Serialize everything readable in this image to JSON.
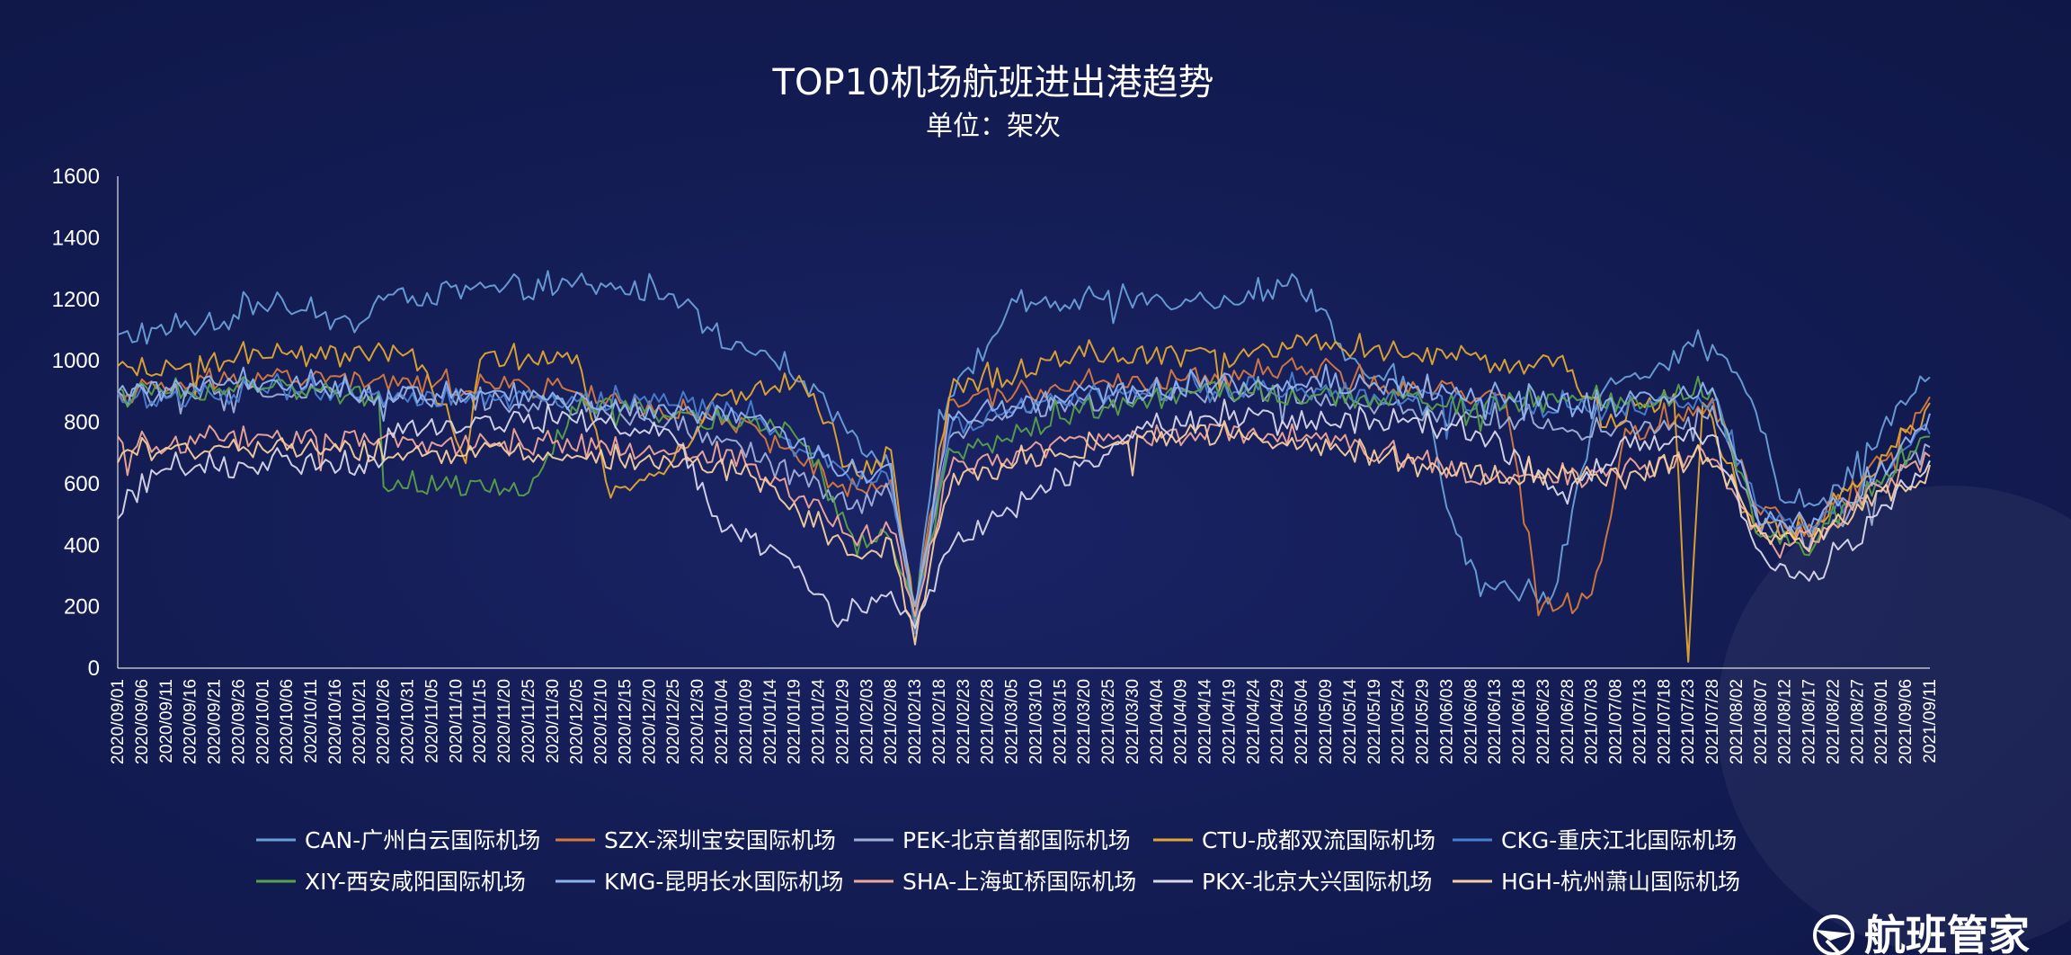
{
  "brand": {
    "name": "航班管家",
    "logo_icon": "globe-plane-icon"
  },
  "chart_data": {
    "type": "line",
    "title": "TOP10机场航班进出港趋势",
    "subtitle": "单位：架次",
    "ylim": [
      0,
      1600
    ],
    "yticks": [
      0,
      200,
      400,
      600,
      800,
      1000,
      1200,
      1400,
      1600
    ],
    "x_start": "2020/09/01",
    "x_end": "2021/09/11",
    "xticks": [
      "2020/09/01",
      "2020/09/06",
      "2020/09/11",
      "2020/09/16",
      "2020/09/21",
      "2020/09/26",
      "2020/10/01",
      "2020/10/06",
      "2020/10/11",
      "2020/10/16",
      "2020/10/21",
      "2020/10/26",
      "2020/10/31",
      "2020/11/05",
      "2020/11/10",
      "2020/11/15",
      "2020/11/20",
      "2020/11/25",
      "2020/11/30",
      "2020/12/05",
      "2020/12/10",
      "2020/12/15",
      "2020/12/20",
      "2020/12/25",
      "2020/12/30",
      "2021/01/04",
      "2021/01/09",
      "2021/01/14",
      "2021/01/19",
      "2021/01/24",
      "2021/01/29",
      "2021/02/03",
      "2021/02/08",
      "2021/02/13",
      "2021/02/18",
      "2021/02/23",
      "2021/02/28",
      "2021/03/05",
      "2021/03/10",
      "2021/03/15",
      "2021/03/20",
      "2021/03/25",
      "2021/03/30",
      "2021/04/04",
      "2021/04/09",
      "2021/04/14",
      "2021/04/19",
      "2021/04/24",
      "2021/04/29",
      "2021/05/04",
      "2021/05/09",
      "2021/05/14",
      "2021/05/19",
      "2021/05/24",
      "2021/05/29",
      "2021/06/03",
      "2021/06/08",
      "2021/06/13",
      "2021/06/18",
      "2021/06/23",
      "2021/06/28",
      "2021/07/03",
      "2021/07/08",
      "2021/07/13",
      "2021/07/18",
      "2021/07/23",
      "2021/07/28",
      "2021/08/02",
      "2021/08/07",
      "2021/08/12",
      "2021/08/17",
      "2021/08/22",
      "2021/08/27",
      "2021/09/01",
      "2021/09/06",
      "2021/09/11"
    ],
    "grid": false,
    "legend_position": "bottom",
    "series": [
      {
        "name": "CAN-广州白云国际机场",
        "color": "#6a9fd8",
        "anchors": [
          [
            "2020/09/01",
            1070
          ],
          [
            "2020/09/20",
            1120
          ],
          [
            "2020/10/01",
            1190
          ],
          [
            "2020/10/20",
            1110
          ],
          [
            "2020/10/26",
            1200
          ],
          [
            "2020/11/20",
            1230
          ],
          [
            "2020/12/05",
            1240
          ],
          [
            "2020/12/25",
            1220
          ],
          [
            "2021/01/04",
            1050
          ],
          [
            "2021/01/20",
            960
          ],
          [
            "2021/02/01",
            720
          ],
          [
            "2021/02/08",
            650
          ],
          [
            "2021/02/13",
            160
          ],
          [
            "2021/02/18",
            820
          ],
          [
            "2021/03/05",
            1170
          ],
          [
            "2021/03/30",
            1200
          ],
          [
            "2021/04/19",
            1200
          ],
          [
            "2021/05/04",
            1250
          ],
          [
            "2021/05/14",
            990
          ],
          [
            "2021/05/29",
            900
          ],
          [
            "2021/06/05",
            420
          ],
          [
            "2021/06/10",
            260
          ],
          [
            "2021/06/25",
            240
          ],
          [
            "2021/07/05",
            900
          ],
          [
            "2021/07/25",
            1040
          ],
          [
            "2021/08/02",
            980
          ],
          [
            "2021/08/12",
            540
          ],
          [
            "2021/08/22",
            560
          ],
          [
            "2021/09/01",
            780
          ],
          [
            "2021/09/11",
            950
          ]
        ]
      },
      {
        "name": "SZX-深圳宝安国际机场",
        "color": "#d77a3d",
        "anchors": [
          [
            "2020/09/01",
            890
          ],
          [
            "2020/10/01",
            950
          ],
          [
            "2020/11/01",
            920
          ],
          [
            "2020/12/01",
            910
          ],
          [
            "2020/12/25",
            820
          ],
          [
            "2021/01/09",
            780
          ],
          [
            "2021/02/01",
            560
          ],
          [
            "2021/02/08",
            600
          ],
          [
            "2021/02/13",
            170
          ],
          [
            "2021/02/20",
            850
          ],
          [
            "2021/03/10",
            900
          ],
          [
            "2021/04/10",
            940
          ],
          [
            "2021/05/04",
            980
          ],
          [
            "2021/05/20",
            920
          ],
          [
            "2021/06/15",
            880
          ],
          [
            "2021/06/22",
            200
          ],
          [
            "2021/07/03",
            220
          ],
          [
            "2021/07/10",
            760
          ],
          [
            "2021/07/28",
            860
          ],
          [
            "2021/08/07",
            520
          ],
          [
            "2021/08/15",
            440
          ],
          [
            "2021/08/25",
            560
          ],
          [
            "2021/09/11",
            860
          ]
        ]
      },
      {
        "name": "PEK-北京首都国际机场",
        "color": "#9fb0d8",
        "anchors": [
          [
            "2020/09/01",
            880
          ],
          [
            "2020/10/01",
            900
          ],
          [
            "2020/11/01",
            880
          ],
          [
            "2020/12/01",
            860
          ],
          [
            "2020/12/25",
            800
          ],
          [
            "2021/01/09",
            700
          ],
          [
            "2021/02/01",
            520
          ],
          [
            "2021/02/08",
            580
          ],
          [
            "2021/02/13",
            150
          ],
          [
            "2021/02/20",
            760
          ],
          [
            "2021/03/15",
            860
          ],
          [
            "2021/04/15",
            900
          ],
          [
            "2021/05/10",
            880
          ],
          [
            "2021/06/01",
            820
          ],
          [
            "2021/06/20",
            800
          ],
          [
            "2021/07/05",
            760
          ],
          [
            "2021/07/28",
            820
          ],
          [
            "2021/08/07",
            460
          ],
          [
            "2021/08/17",
            420
          ],
          [
            "2021/08/27",
            520
          ],
          [
            "2021/09/11",
            720
          ]
        ]
      },
      {
        "name": "CTU-成都双流国际机场",
        "color": "#e2a632",
        "anchors": [
          [
            "2020/09/01",
            960
          ],
          [
            "2020/10/01",
            1010
          ],
          [
            "2020/11/01",
            1020
          ],
          [
            "2020/11/12",
            690
          ],
          [
            "2020/11/15",
            1010
          ],
          [
            "2020/12/05",
            990
          ],
          [
            "2020/12/12",
            580
          ],
          [
            "2020/12/22",
            620
          ],
          [
            "2021/01/04",
            880
          ],
          [
            "2021/01/20",
            930
          ],
          [
            "2021/02/01",
            640
          ],
          [
            "2021/02/08",
            700
          ],
          [
            "2021/02/13",
            160
          ],
          [
            "2021/02/20",
            900
          ],
          [
            "2021/03/20",
            1020
          ],
          [
            "2021/04/20",
            1010
          ],
          [
            "2021/05/04",
            1060
          ],
          [
            "2021/05/29",
            1010
          ],
          [
            "2021/06/28",
            980
          ],
          [
            "2021/07/05",
            800
          ],
          [
            "2021/07/20",
            880
          ],
          [
            "2021/07/23",
            20
          ],
          [
            "2021/07/26",
            860
          ],
          [
            "2021/08/05",
            460
          ],
          [
            "2021/08/17",
            440
          ],
          [
            "2021/08/27",
            600
          ],
          [
            "2021/09/11",
            830
          ]
        ]
      },
      {
        "name": "CKG-重庆江北国际机场",
        "color": "#4a7fd0",
        "anchors": [
          [
            "2020/09/01",
            870
          ],
          [
            "2020/10/01",
            900
          ],
          [
            "2020/11/01",
            880
          ],
          [
            "2020/12/01",
            870
          ],
          [
            "2020/12/25",
            860
          ],
          [
            "2021/01/09",
            820
          ],
          [
            "2021/02/01",
            600
          ],
          [
            "2021/02/08",
            620
          ],
          [
            "2021/02/13",
            140
          ],
          [
            "2021/02/20",
            780
          ],
          [
            "2021/03/15",
            880
          ],
          [
            "2021/04/15",
            920
          ],
          [
            "2021/05/10",
            900
          ],
          [
            "2021/06/10",
            860
          ],
          [
            "2021/07/05",
            840
          ],
          [
            "2021/07/28",
            880
          ],
          [
            "2021/08/07",
            500
          ],
          [
            "2021/08/17",
            460
          ],
          [
            "2021/08/27",
            560
          ],
          [
            "2021/09/11",
            780
          ]
        ]
      },
      {
        "name": "XIY-西安咸阳国际机场",
        "color": "#5aa04a",
        "anchors": [
          [
            "2020/09/01",
            880
          ],
          [
            "2020/10/01",
            920
          ],
          [
            "2020/10/25",
            880
          ],
          [
            "2020/10/26",
            600
          ],
          [
            "2020/11/25",
            590
          ],
          [
            "2020/12/05",
            860
          ],
          [
            "2020/12/25",
            820
          ],
          [
            "2021/01/09",
            800
          ],
          [
            "2021/01/20",
            760
          ],
          [
            "2021/02/01",
            400
          ],
          [
            "2021/02/08",
            440
          ],
          [
            "2021/02/13",
            180
          ],
          [
            "2021/02/20",
            680
          ],
          [
            "2021/03/15",
            820
          ],
          [
            "2021/04/15",
            900
          ],
          [
            "2021/05/10",
            880
          ],
          [
            "2021/06/01",
            860
          ],
          [
            "2021/07/05",
            860
          ],
          [
            "2021/07/28",
            900
          ],
          [
            "2021/08/07",
            430
          ],
          [
            "2021/08/17",
            400
          ],
          [
            "2021/08/27",
            540
          ],
          [
            "2021/09/11",
            760
          ]
        ]
      },
      {
        "name": "KMG-昆明长水国际机场",
        "color": "#8fb2ee",
        "anchors": [
          [
            "2020/09/01",
            890
          ],
          [
            "2020/10/01",
            930
          ],
          [
            "2020/11/01",
            880
          ],
          [
            "2020/12/01",
            870
          ],
          [
            "2020/12/25",
            830
          ],
          [
            "2021/01/09",
            820
          ],
          [
            "2021/02/01",
            620
          ],
          [
            "2021/02/08",
            640
          ],
          [
            "2021/02/13",
            200
          ],
          [
            "2021/02/20",
            800
          ],
          [
            "2021/03/15",
            880
          ],
          [
            "2021/04/15",
            920
          ],
          [
            "2021/05/10",
            930
          ],
          [
            "2021/06/10",
            880
          ],
          [
            "2021/07/05",
            860
          ],
          [
            "2021/07/28",
            900
          ],
          [
            "2021/08/07",
            480
          ],
          [
            "2021/08/17",
            460
          ],
          [
            "2021/08/27",
            560
          ],
          [
            "2021/09/11",
            820
          ]
        ]
      },
      {
        "name": "SHA-上海虹桥国际机场",
        "color": "#f0a89a",
        "anchors": [
          [
            "2020/09/01",
            720
          ],
          [
            "2020/10/01",
            750
          ],
          [
            "2020/11/01",
            730
          ],
          [
            "2020/12/01",
            720
          ],
          [
            "2020/12/25",
            700
          ],
          [
            "2021/01/09",
            680
          ],
          [
            "2021/02/01",
            420
          ],
          [
            "2021/02/08",
            460
          ],
          [
            "2021/02/13",
            170
          ],
          [
            "2021/02/20",
            640
          ],
          [
            "2021/03/15",
            720
          ],
          [
            "2021/04/15",
            760
          ],
          [
            "2021/05/10",
            740
          ],
          [
            "2021/06/10",
            620
          ],
          [
            "2021/07/05",
            620
          ],
          [
            "2021/07/28",
            700
          ],
          [
            "2021/08/07",
            420
          ],
          [
            "2021/08/17",
            420
          ],
          [
            "2021/08/27",
            540
          ],
          [
            "2021/09/11",
            680
          ]
        ]
      },
      {
        "name": "PKX-北京大兴国际机场",
        "color": "#d8d8ea",
        "anchors": [
          [
            "2020/09/01",
            520
          ],
          [
            "2020/09/10",
            640
          ],
          [
            "2020/10/01",
            660
          ],
          [
            "2020/10/26",
            660
          ],
          [
            "2020/10/27",
            780
          ],
          [
            "2020/11/20",
            800
          ],
          [
            "2020/12/10",
            800
          ],
          [
            "2020/12/25",
            760
          ],
          [
            "2021/01/04",
            450
          ],
          [
            "2021/01/19",
            360
          ],
          [
            "2021/01/27",
            160
          ],
          [
            "2021/02/08",
            240
          ],
          [
            "2021/02/13",
            120
          ],
          [
            "2021/02/20",
            400
          ],
          [
            "2021/03/10",
            560
          ],
          [
            "2021/03/30",
            760
          ],
          [
            "2021/04/20",
            820
          ],
          [
            "2021/05/14",
            800
          ],
          [
            "2021/06/10",
            760
          ],
          [
            "2021/06/28",
            560
          ],
          [
            "2021/07/10",
            720
          ],
          [
            "2021/07/28",
            760
          ],
          [
            "2021/08/07",
            360
          ],
          [
            "2021/08/17",
            280
          ],
          [
            "2021/08/27",
            420
          ],
          [
            "2021/09/11",
            660
          ]
        ]
      },
      {
        "name": "HGH-杭州萧山国际机场",
        "color": "#f5cfa0",
        "anchors": [
          [
            "2020/09/01",
            700
          ],
          [
            "2020/10/01",
            720
          ],
          [
            "2020/11/01",
            700
          ],
          [
            "2020/12/01",
            700
          ],
          [
            "2020/12/25",
            660
          ],
          [
            "2021/01/09",
            640
          ],
          [
            "2021/02/01",
            360
          ],
          [
            "2021/02/08",
            400
          ],
          [
            "2021/02/13",
            110
          ],
          [
            "2021/02/20",
            600
          ],
          [
            "2021/03/15",
            700
          ],
          [
            "2021/04/15",
            760
          ],
          [
            "2021/05/10",
            720
          ],
          [
            "2021/06/01",
            640
          ],
          [
            "2021/07/05",
            620
          ],
          [
            "2021/07/28",
            680
          ],
          [
            "2021/08/07",
            420
          ],
          [
            "2021/08/17",
            400
          ],
          [
            "2021/08/27",
            520
          ],
          [
            "2021/09/11",
            640
          ]
        ]
      }
    ]
  }
}
